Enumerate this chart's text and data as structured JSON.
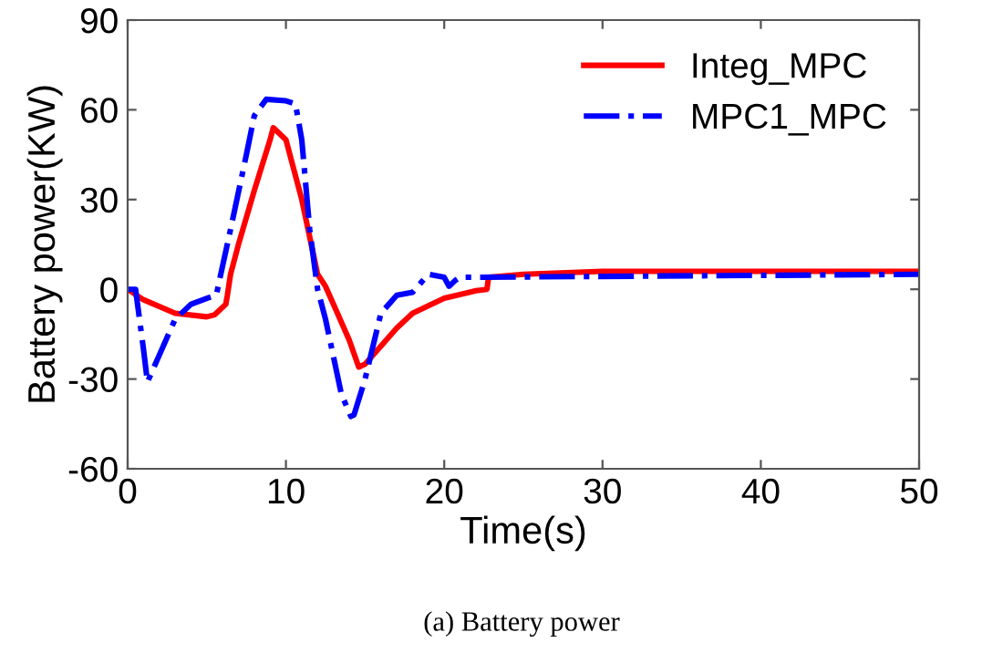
{
  "chart_data": {
    "type": "line",
    "xlabel": "Time(s)",
    "ylabel": "Battery power(KW)",
    "xlim": [
      0,
      50
    ],
    "xticks": [
      0,
      10,
      20,
      30,
      40,
      50
    ],
    "ylim": [
      -60,
      90
    ],
    "yticks": [
      -60,
      -30,
      0,
      30,
      60,
      90
    ],
    "grid": false,
    "legend": "top right",
    "annotations": [
      "(a) Battery power"
    ],
    "series": [
      {
        "name": "Integ_MPC",
        "color": "#ff0000",
        "line_style": "solid",
        "x": [
          0,
          1,
          3,
          5,
          5.5,
          6,
          6.2,
          6.3,
          6.5,
          7,
          8,
          9,
          9.2,
          10,
          11,
          12,
          12.5,
          13,
          14,
          14.6,
          15,
          16,
          17,
          18,
          20,
          22,
          22.7,
          22.8,
          25,
          30,
          50
        ],
        "values": [
          0,
          -3.5,
          -8,
          -9.2,
          -8.5,
          -6,
          -5,
          -2,
          5,
          15,
          33,
          50,
          54,
          50,
          30,
          5,
          1,
          -5,
          -17,
          -26,
          -25,
          -19,
          -13,
          -8,
          -3,
          -0.5,
          0,
          4,
          5,
          6,
          6
        ]
      },
      {
        "name": "MPC1_MPC",
        "color": "#0000ff",
        "line_style": "dashdot",
        "x": [
          0,
          0.5,
          1,
          1.25,
          2,
          3,
          4,
          5,
          5.6,
          5.8,
          6.5,
          7.5,
          8,
          8.75,
          10,
          10.6,
          11,
          11.5,
          12,
          12.5,
          13.5,
          14.1,
          14.3,
          15,
          16,
          17,
          18,
          18.5,
          19,
          20,
          20.3,
          20.7,
          21,
          50
        ],
        "values": [
          0,
          0,
          -20,
          -31,
          -22,
          -10,
          -5,
          -3,
          -2,
          3,
          20,
          45,
          58,
          63.5,
          63,
          62,
          50,
          20,
          0,
          -10,
          -35,
          -42.5,
          -42,
          -30,
          -8,
          -2,
          -1,
          2,
          5,
          4,
          1,
          3,
          4,
          5
        ]
      }
    ]
  }
}
